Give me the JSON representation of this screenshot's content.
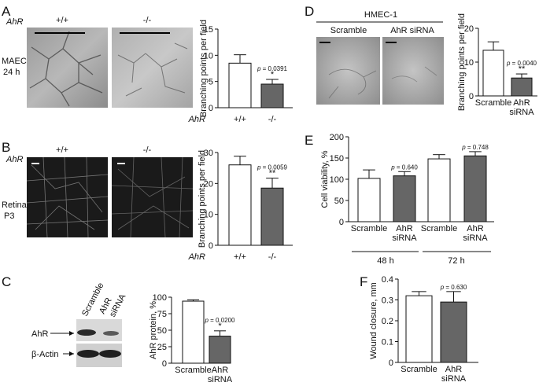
{
  "panels": {
    "A": {
      "letter": "A",
      "ahr_label": "AhR",
      "col_wt": "+/+",
      "col_ko": "-/-",
      "row_label_1": "MAEC",
      "row_label_2": "24 h",
      "chart_data": {
        "type": "bar",
        "categories": [
          "+/+",
          "-/-"
        ],
        "values": [
          8.5,
          4.5
        ],
        "errors": [
          1.6,
          0.9
        ],
        "ylabel": "Branching points per field",
        "xlabel_prefix": "AhR",
        "ylim": [
          0,
          15
        ],
        "yticks": [
          "0",
          "5",
          "10",
          "15"
        ],
        "pvalue": "p = 0.0391",
        "stars": "*",
        "colors": [
          "#ffffff",
          "#666666"
        ]
      }
    },
    "B": {
      "letter": "B",
      "ahr_label": "AhR",
      "col_wt": "+/+",
      "col_ko": "-/-",
      "row_label_1": "Retina",
      "row_label_2": "P3",
      "chart_data": {
        "type": "bar",
        "categories": [
          "+/+",
          "-/-"
        ],
        "values": [
          26,
          18.5
        ],
        "errors": [
          2.8,
          3.2
        ],
        "ylabel": "Branching points per field",
        "xlabel_prefix": "AhR",
        "ylim": [
          0,
          30
        ],
        "yticks": [
          "0",
          "10",
          "20",
          "30"
        ],
        "pvalue": "p = 0.0059",
        "stars": "**",
        "colors": [
          "#ffffff",
          "#666666"
        ]
      }
    },
    "C": {
      "letter": "C",
      "lane_1": "Scramble",
      "lane_2a": "AhR",
      "lane_2b": "siRNA",
      "band_1": "AhR",
      "band_2": "β-Actin",
      "chart_data": {
        "type": "bar",
        "categories": [
          "Scramble",
          "AhR siRNA"
        ],
        "values": [
          94,
          41
        ],
        "errors": [
          2,
          8
        ],
        "ylabel": "AhR protein, %",
        "ylim": [
          0,
          100
        ],
        "yticks": [
          "0",
          "25",
          "50",
          "75",
          "100"
        ],
        "pvalue": "p = 0.0200",
        "stars": "*",
        "colors": [
          "#ffffff",
          "#666666"
        ]
      }
    },
    "D": {
      "letter": "D",
      "header": "HMEC-1",
      "col_1": "Scramble",
      "col_2": "AhR siRNA",
      "chart_data": {
        "type": "bar",
        "categories": [
          "Scramble",
          "AhR siRNA"
        ],
        "values": [
          13.5,
          5.3
        ],
        "errors": [
          2.5,
          1.2
        ],
        "ylabel": "Branching points per field",
        "ylim": [
          0,
          20
        ],
        "yticks": [
          "0",
          "10",
          "20"
        ],
        "pvalue": "p = 0.0040",
        "stars": "**",
        "colors": [
          "#ffffff",
          "#666666"
        ]
      }
    },
    "E": {
      "letter": "E",
      "group_1": "48 h",
      "group_2": "72 h",
      "chart_data": {
        "type": "bar",
        "categories": [
          "Scramble",
          "AhR siRNA",
          "Scramble",
          "AhR siRNA"
        ],
        "values": [
          102,
          108,
          148,
          155
        ],
        "errors": [
          20,
          10,
          10,
          10
        ],
        "ylabel": "Cell viability, %",
        "ylim": [
          0,
          200
        ],
        "yticks": [
          "0",
          "50",
          "100",
          "150",
          "200"
        ],
        "pvalues": [
          "p = 0.640",
          "p = 0.748"
        ],
        "colors": [
          "#ffffff",
          "#666666",
          "#ffffff",
          "#666666"
        ]
      }
    },
    "F": {
      "letter": "F",
      "chart_data": {
        "type": "bar",
        "categories": [
          "Scramble",
          "AhR siRNA"
        ],
        "values": [
          0.32,
          0.29
        ],
        "errors": [
          0.02,
          0.05
        ],
        "ylabel": "Wound closure, mm",
        "ylim": [
          0,
          0.4
        ],
        "yticks": [
          "0",
          "0.1",
          "0.2",
          "0.3",
          "0.4"
        ],
        "pvalue": "p = 0.630",
        "colors": [
          "#ffffff",
          "#666666"
        ]
      }
    }
  }
}
